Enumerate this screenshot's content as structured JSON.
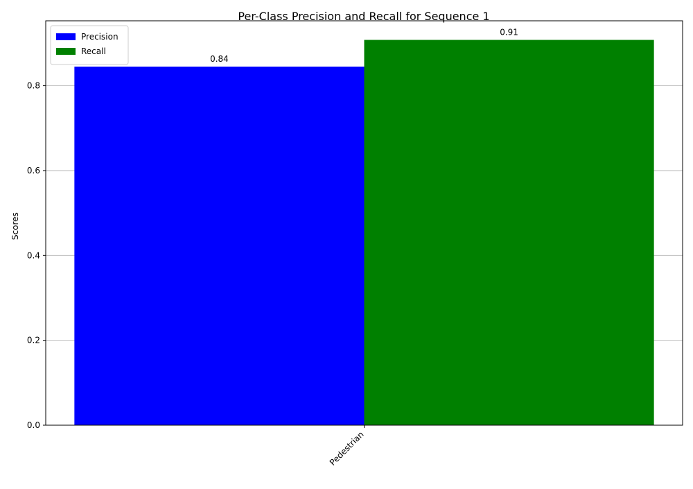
{
  "chart_data": {
    "type": "bar",
    "title": "Per-Class Precision and Recall for Sequence 1",
    "xlabel": "",
    "ylabel": "Scores",
    "categories": [
      "Pedestrian"
    ],
    "series": [
      {
        "name": "Precision",
        "values": [
          0.845
        ],
        "labels": [
          "0.84"
        ],
        "color": "#0000ff"
      },
      {
        "name": "Recall",
        "values": [
          0.908
        ],
        "labels": [
          "0.91"
        ],
        "color": "#008000"
      }
    ],
    "ylim": [
      0,
      0.953
    ],
    "yticks": [
      0.0,
      0.2,
      0.4,
      0.6,
      0.8
    ],
    "ytick_labels": [
      "0.0",
      "0.2",
      "0.4",
      "0.6",
      "0.8"
    ],
    "grid": "y-axis horizontal lines",
    "grid_color": "#b0b0b0",
    "legend_position": "top-left",
    "xtick_rotation_deg": 45
  }
}
